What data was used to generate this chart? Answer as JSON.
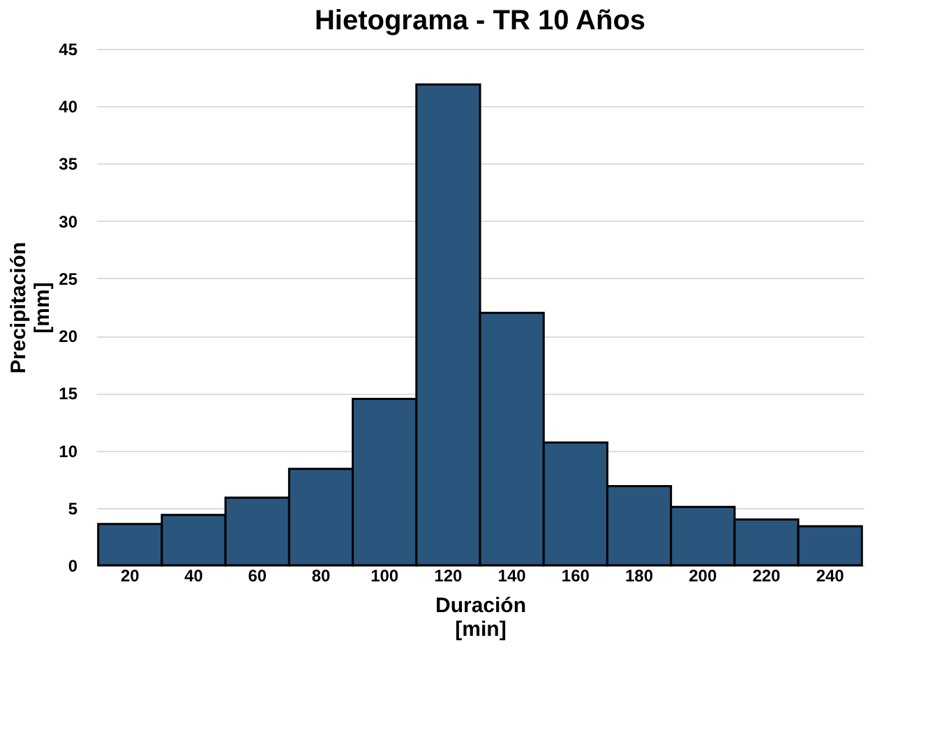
{
  "chart_data": {
    "type": "bar",
    "title": "Hietograma - TR 10 Años",
    "xlabel": "Duración\n[min]",
    "ylabel": "Precipitación\n[mm]",
    "categories": [
      "20",
      "40",
      "60",
      "80",
      "100",
      "120",
      "140",
      "160",
      "180",
      "200",
      "220",
      "240"
    ],
    "values": [
      3.6,
      4.4,
      5.9,
      8.4,
      14.5,
      41.9,
      22.0,
      10.7,
      6.9,
      5.1,
      4.0,
      3.4
    ],
    "color": "#2a567e",
    "ylim": [
      0,
      45
    ],
    "yticks": [
      0,
      5,
      10,
      15,
      20,
      25,
      30,
      35,
      40,
      45
    ],
    "grid": "y"
  }
}
